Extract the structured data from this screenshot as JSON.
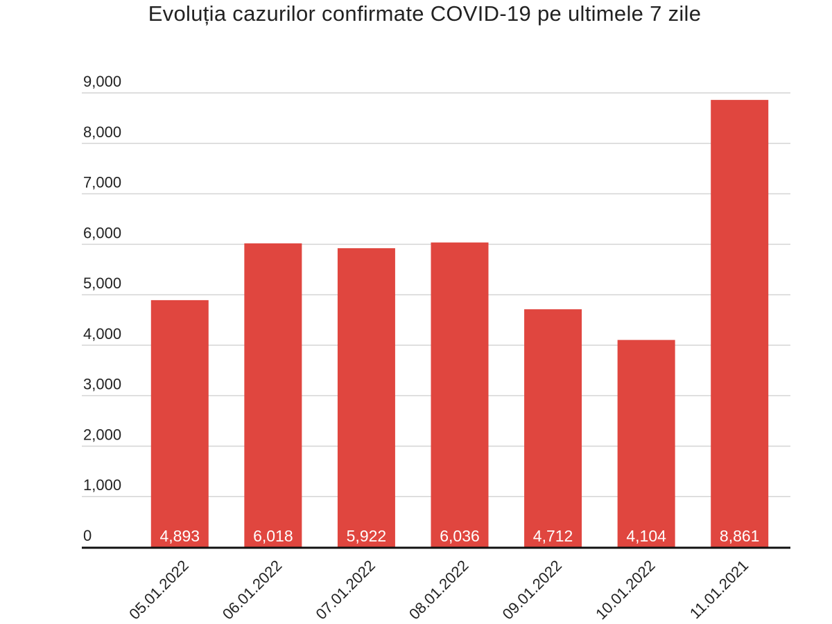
{
  "chart_data": {
    "type": "bar",
    "title": "Evoluția cazurilor confirmate COVID-19 pe ultimele 7 zile",
    "xlabel": "",
    "ylabel": "",
    "categories": [
      "05.01.2022",
      "06.01.2022",
      "07.01.2022",
      "08.01.2022",
      "09.01.2022",
      "10.01.2022",
      "11.01.2021"
    ],
    "values": [
      4893,
      6018,
      5922,
      6036,
      4712,
      4104,
      8861
    ],
    "data_labels": [
      "4,893",
      "6,018",
      "5,922",
      "6,036",
      "4,712",
      "4,104",
      "8,861"
    ],
    "ylim": [
      0,
      9000
    ],
    "yticks": [
      0,
      1000,
      2000,
      3000,
      4000,
      5000,
      6000,
      7000,
      8000,
      9000
    ],
    "ytick_labels": [
      "0",
      "1,000",
      "2,000",
      "3,000",
      "4,000",
      "5,000",
      "6,000",
      "7,000",
      "8,000",
      "9,000"
    ],
    "grid": true,
    "legend": "none",
    "bar_color": "#e0463f"
  }
}
